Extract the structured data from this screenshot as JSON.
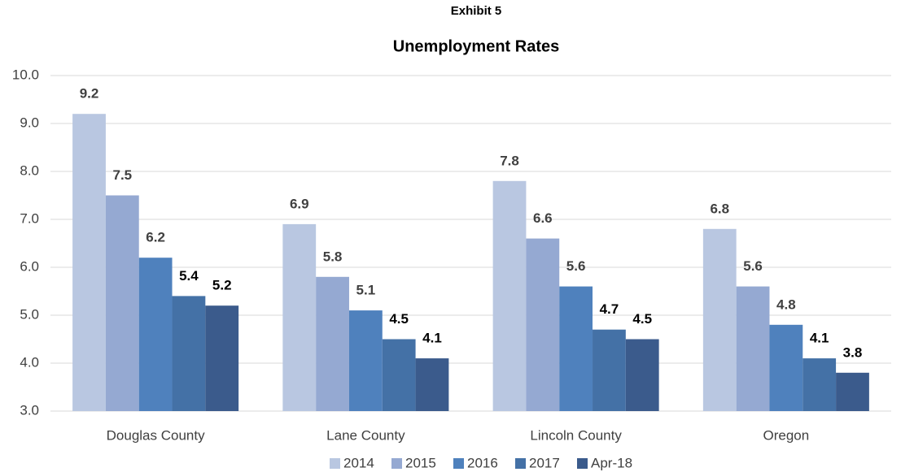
{
  "chart_data": {
    "type": "bar",
    "heading": "Exhibit 5",
    "title": "Unemployment Rates",
    "categories": [
      "Douglas County",
      "Lane County",
      "Lincoln County",
      "Oregon"
    ],
    "series": [
      {
        "name": "2014",
        "color": "#b9c7e1",
        "values": [
          9.2,
          6.9,
          7.8,
          6.8
        ]
      },
      {
        "name": "2015",
        "color": "#95a9d2",
        "values": [
          7.5,
          5.8,
          6.6,
          5.6
        ]
      },
      {
        "name": "2016",
        "color": "#4f81bd",
        "values": [
          6.2,
          5.1,
          5.6,
          4.8
        ]
      },
      {
        "name": "2017",
        "color": "#4471a6",
        "values": [
          5.4,
          4.5,
          4.7,
          4.1
        ]
      },
      {
        "name": "Apr-18",
        "color": "#3b5b8c",
        "values": [
          5.2,
          4.1,
          4.5,
          3.8
        ]
      }
    ],
    "ylim": [
      3,
      10
    ],
    "yticks": [
      {
        "value": 3,
        "label": "3.0"
      },
      {
        "value": 4,
        "label": "4.0"
      },
      {
        "value": 5,
        "label": "5.0"
      },
      {
        "value": 6,
        "label": "6.0"
      },
      {
        "value": 7,
        "label": "7.0"
      },
      {
        "value": 8,
        "label": "8.0"
      },
      {
        "value": 9,
        "label": "9.0"
      },
      {
        "value": 10,
        "label": "10.0"
      }
    ],
    "grid": true,
    "legend": "bottom"
  }
}
